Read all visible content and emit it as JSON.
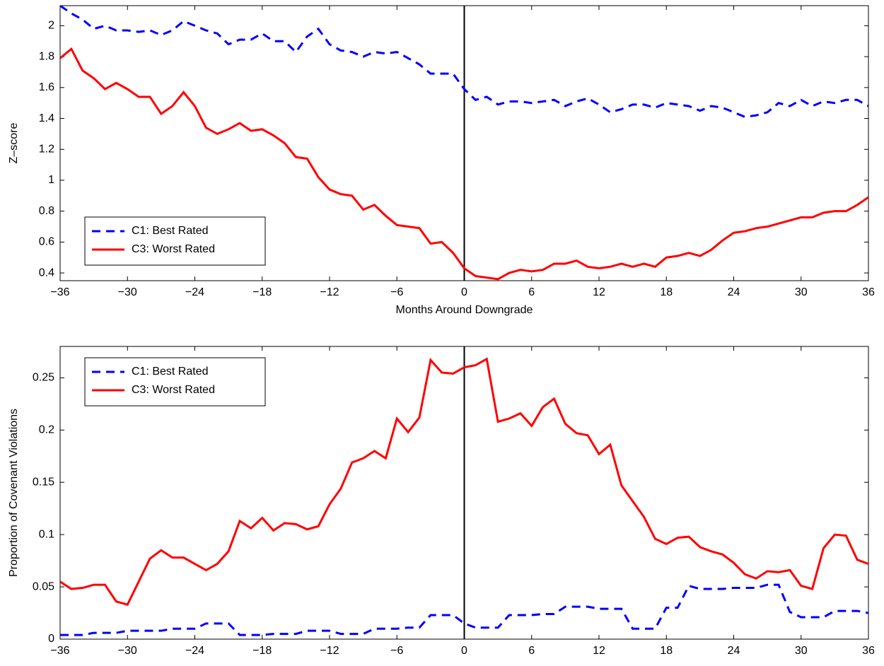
{
  "chart_data": [
    {
      "type": "line",
      "xlabel": "Months Around Downgrade",
      "ylabel": "Z–score",
      "legend": "lower left",
      "vline": 0,
      "x": [
        -36,
        -35,
        -34,
        -33,
        -32,
        -31,
        -30,
        -29,
        -28,
        -27,
        -26,
        -25,
        -24,
        -23,
        -22,
        -21,
        -20,
        -19,
        -18,
        -17,
        -16,
        -15,
        -14,
        -13,
        -12,
        -11,
        -10,
        -9,
        -8,
        -7,
        -6,
        -5,
        -4,
        -3,
        -2,
        -1,
        0,
        1,
        2,
        3,
        4,
        5,
        6,
        7,
        8,
        9,
        10,
        11,
        12,
        13,
        14,
        15,
        16,
        17,
        18,
        19,
        20,
        21,
        22,
        23,
        24,
        25,
        26,
        27,
        28,
        29,
        30,
        31,
        32,
        33,
        34,
        35,
        36
      ],
      "xlim": [
        -36,
        36
      ],
      "xticks": [
        {
          "value": -36,
          "label": "−36"
        },
        {
          "value": -30,
          "label": "−30"
        },
        {
          "value": -24,
          "label": "−24"
        },
        {
          "value": -18,
          "label": "−18"
        },
        {
          "value": -12,
          "label": "−12"
        },
        {
          "value": -6,
          "label": "−6"
        },
        0,
        6,
        12,
        18,
        24,
        30,
        36
      ],
      "ylim": [
        0.35,
        2.13
      ],
      "yticks": [
        0.4,
        0.6,
        0.8,
        1,
        1.2,
        1.4,
        1.6,
        1.8,
        2
      ],
      "series": [
        {
          "name": "C1: Best Rated",
          "color": "#0000ff",
          "linestyle": "dashed",
          "values": [
            2.13,
            2.08,
            2.04,
            1.98,
            2.0,
            1.97,
            1.97,
            1.96,
            1.97,
            1.94,
            1.97,
            2.03,
            2.0,
            1.97,
            1.95,
            1.88,
            1.91,
            1.91,
            1.95,
            1.9,
            1.9,
            1.83,
            1.93,
            1.98,
            1.88,
            1.84,
            1.83,
            1.8,
            1.83,
            1.82,
            1.83,
            1.79,
            1.75,
            1.69,
            1.69,
            1.69,
            1.59,
            1.52,
            1.54,
            1.49,
            1.51,
            1.51,
            1.5,
            1.51,
            1.52,
            1.48,
            1.51,
            1.53,
            1.49,
            1.44,
            1.46,
            1.49,
            1.49,
            1.47,
            1.5,
            1.49,
            1.48,
            1.45,
            1.48,
            1.47,
            1.44,
            1.41,
            1.42,
            1.44,
            1.5,
            1.48,
            1.52,
            1.48,
            1.51,
            1.5,
            1.52,
            1.52,
            1.48
          ]
        },
        {
          "name": "C3: Worst Rated",
          "color": "#ff0000",
          "linestyle": "solid",
          "values": [
            1.79,
            1.85,
            1.71,
            1.66,
            1.59,
            1.63,
            1.59,
            1.54,
            1.54,
            1.43,
            1.48,
            1.57,
            1.48,
            1.34,
            1.3,
            1.33,
            1.37,
            1.32,
            1.33,
            1.29,
            1.24,
            1.15,
            1.14,
            1.02,
            0.94,
            0.91,
            0.9,
            0.81,
            0.84,
            0.77,
            0.71,
            0.7,
            0.69,
            0.59,
            0.6,
            0.53,
            0.43,
            0.38,
            0.37,
            0.36,
            0.4,
            0.42,
            0.41,
            0.42,
            0.46,
            0.46,
            0.48,
            0.44,
            0.43,
            0.44,
            0.46,
            0.44,
            0.46,
            0.44,
            0.5,
            0.51,
            0.53,
            0.51,
            0.55,
            0.61,
            0.66,
            0.67,
            0.69,
            0.7,
            0.72,
            0.74,
            0.76,
            0.76,
            0.79,
            0.8,
            0.8,
            0.84,
            0.89
          ]
        }
      ]
    },
    {
      "type": "line",
      "ylabel": "Proportion of Covenant Violations",
      "legend": "upper left",
      "vline": 0,
      "x": [
        -36,
        -35,
        -34,
        -33,
        -32,
        -31,
        -30,
        -29,
        -28,
        -27,
        -26,
        -25,
        -24,
        -23,
        -22,
        -21,
        -20,
        -19,
        -18,
        -17,
        -16,
        -15,
        -14,
        -13,
        -12,
        -11,
        -10,
        -9,
        -8,
        -7,
        -6,
        -5,
        -4,
        -3,
        -2,
        -1,
        0,
        1,
        2,
        3,
        4,
        5,
        6,
        7,
        8,
        9,
        10,
        11,
        12,
        13,
        14,
        15,
        16,
        17,
        18,
        19,
        20,
        21,
        22,
        23,
        24,
        25,
        26,
        27,
        28,
        29,
        30,
        31,
        32,
        33,
        34,
        35,
        36
      ],
      "xlim": [
        -36,
        36
      ],
      "xticks": [
        {
          "value": -36,
          "label": "−36"
        },
        {
          "value": -30,
          "label": "−30"
        },
        {
          "value": -24,
          "label": "−24"
        },
        {
          "value": -18,
          "label": "−18"
        },
        {
          "value": -12,
          "label": "−12"
        },
        {
          "value": -6,
          "label": "−6"
        },
        0,
        6,
        12,
        18,
        24,
        30,
        36
      ],
      "ylim": [
        0,
        0.28
      ],
      "yticks": [
        0,
        0.05,
        0.1,
        0.15,
        0.2,
        0.25
      ],
      "series": [
        {
          "name": "C1: Best Rated",
          "color": "#0000ff",
          "linestyle": "dashed",
          "values": [
            0.004,
            0.004,
            0.004,
            0.006,
            0.006,
            0.006,
            0.008,
            0.008,
            0.008,
            0.008,
            0.01,
            0.01,
            0.01,
            0.015,
            0.015,
            0.015,
            0.004,
            0.004,
            0.004,
            0.005,
            0.005,
            0.005,
            0.008,
            0.008,
            0.008,
            0.005,
            0.005,
            0.005,
            0.01,
            0.01,
            0.01,
            0.011,
            0.011,
            0.023,
            0.023,
            0.023,
            0.015,
            0.011,
            0.011,
            0.011,
            0.023,
            0.023,
            0.023,
            0.024,
            0.024,
            0.031,
            0.031,
            0.031,
            0.029,
            0.029,
            0.029,
            0.01,
            0.01,
            0.01,
            0.03,
            0.03,
            0.051,
            0.048,
            0.048,
            0.048,
            0.049,
            0.049,
            0.049,
            0.052,
            0.052,
            0.026,
            0.021,
            0.021,
            0.021,
            0.027,
            0.027,
            0.027,
            0.025
          ]
        },
        {
          "name": "C3: Worst Rated",
          "color": "#ff0000",
          "linestyle": "solid",
          "values": [
            0.055,
            0.048,
            0.049,
            0.052,
            0.052,
            0.036,
            0.033,
            0.055,
            0.077,
            0.085,
            0.078,
            0.078,
            0.072,
            0.066,
            0.072,
            0.084,
            0.113,
            0.106,
            0.116,
            0.104,
            0.111,
            0.11,
            0.105,
            0.108,
            0.129,
            0.144,
            0.169,
            0.173,
            0.18,
            0.173,
            0.211,
            0.198,
            0.212,
            0.267,
            0.255,
            0.254,
            0.26,
            0.262,
            0.268,
            0.208,
            0.211,
            0.216,
            0.204,
            0.222,
            0.23,
            0.206,
            0.197,
            0.195,
            0.177,
            0.186,
            0.147,
            0.132,
            0.117,
            0.096,
            0.091,
            0.097,
            0.098,
            0.088,
            0.084,
            0.081,
            0.073,
            0.062,
            0.058,
            0.065,
            0.064,
            0.066,
            0.051,
            0.048,
            0.087,
            0.1,
            0.099,
            0.076,
            0.072
          ]
        }
      ]
    }
  ]
}
